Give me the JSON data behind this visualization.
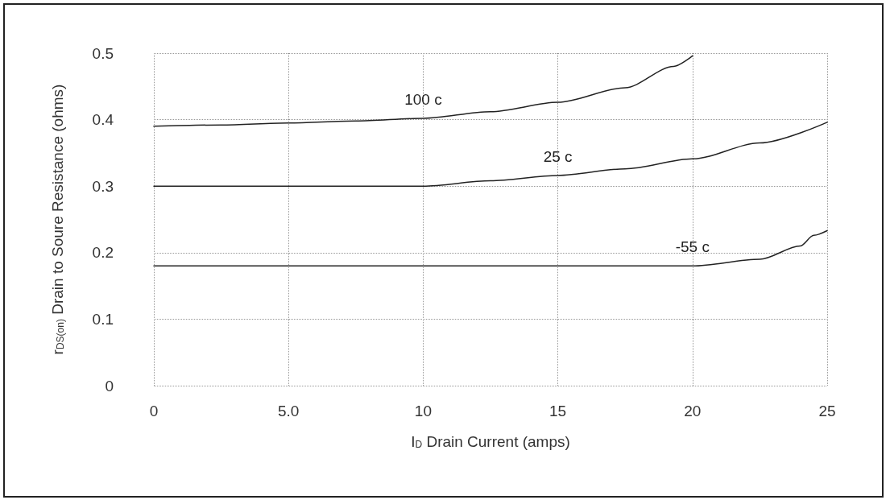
{
  "chart_data": {
    "type": "line",
    "xlabel": "I$_{D}$ Drain Current (amps)",
    "ylabel": "r$_{DS(on)}$ Drain to Soure Resistance (ohms)",
    "xlim": [
      0,
      25
    ],
    "xticks": [
      0,
      {
        "value": 5,
        "label": "5.0"
      },
      10,
      15,
      20,
      25
    ],
    "ylim": [
      0,
      0.5
    ],
    "yticks": [
      0,
      0.1,
      0.2,
      0.3,
      0.4,
      0.5
    ],
    "grid": true,
    "marker": "none",
    "line_style": "solid",
    "legend": false,
    "series": [
      {
        "name": "100 c",
        "color": "#222222",
        "x": [
          0,
          2.5,
          5,
          7.5,
          10,
          12.5,
          15,
          17.5,
          19.3,
          20
        ],
        "values": [
          0.39,
          0.392,
          0.395,
          0.398,
          0.402,
          0.412,
          0.426,
          0.448,
          0.48,
          0.496
        ]
      },
      {
        "name": "25 c",
        "color": "#222222",
        "x": [
          0,
          5,
          10,
          12.5,
          15,
          17.5,
          20,
          22.5,
          25
        ],
        "values": [
          0.3,
          0.3,
          0.3,
          0.308,
          0.316,
          0.326,
          0.341,
          0.365,
          0.396
        ]
      },
      {
        "name": "-55 c",
        "color": "#222222",
        "x": [
          0,
          5,
          10,
          15,
          20,
          22.5,
          24,
          24.5,
          25
        ],
        "values": [
          0.18,
          0.18,
          0.18,
          0.18,
          0.18,
          0.19,
          0.21,
          0.226,
          0.233
        ]
      }
    ]
  }
}
